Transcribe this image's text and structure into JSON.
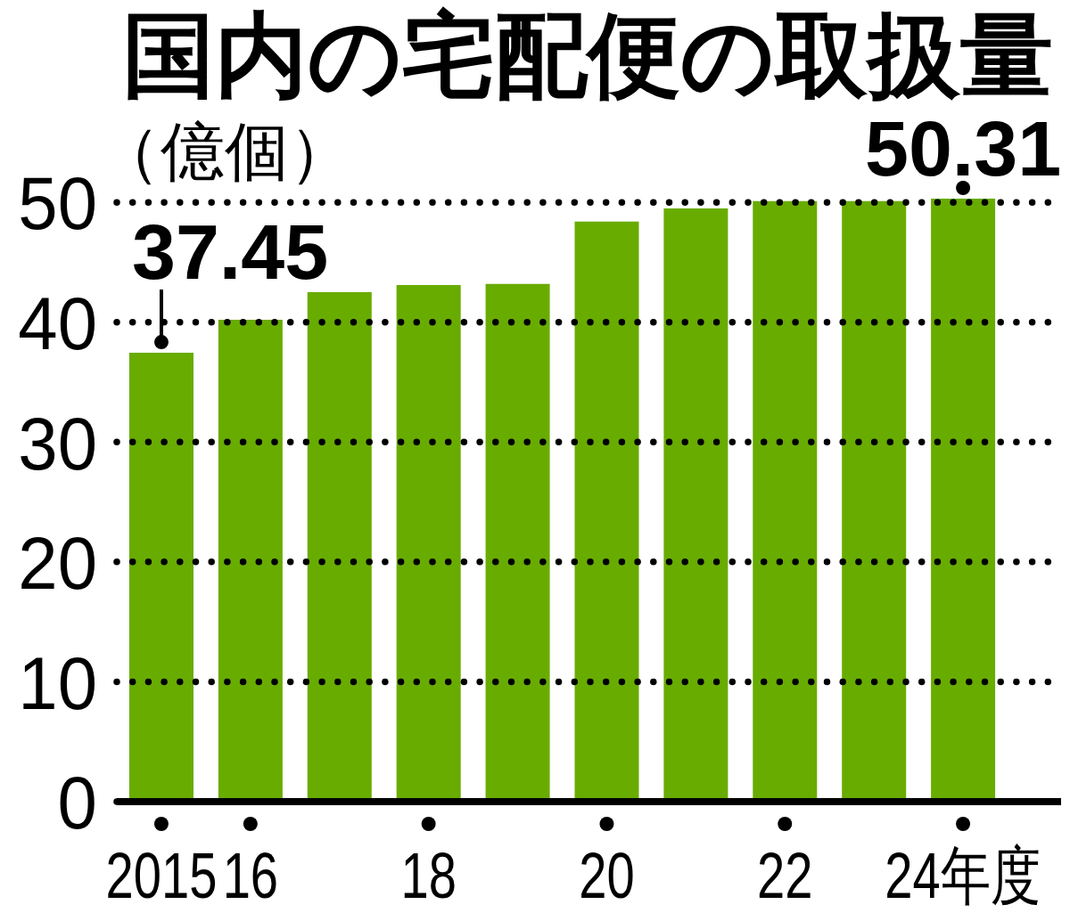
{
  "chart_data": {
    "type": "bar",
    "title": "国内の宅配便の取扱量",
    "ylabel": "（億個）",
    "categories": [
      "2015",
      "16",
      null,
      "18",
      null,
      "20",
      null,
      "22",
      null,
      "24年度"
    ],
    "values": [
      37.45,
      40.2,
      42.5,
      43.1,
      43.2,
      48.4,
      49.5,
      50.1,
      50.1,
      50.31
    ],
    "color": "#68ac00",
    "value_labels": [
      "37.45",
      null,
      null,
      null,
      null,
      null,
      null,
      null,
      null,
      "50.31"
    ],
    "ylim": [
      0,
      50.31
    ],
    "yticks": [
      0,
      10,
      20,
      30,
      40,
      50
    ],
    "grid": "y"
  }
}
